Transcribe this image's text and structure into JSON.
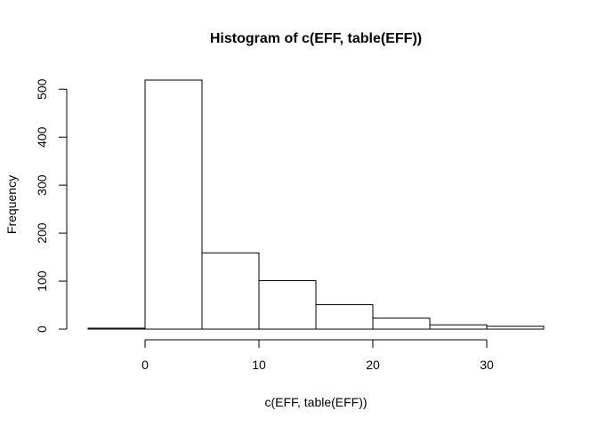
{
  "chart_data": {
    "type": "bar",
    "title": "Histogram of c(EFF, table(EFF))",
    "xlabel": "c(EFF, table(EFF))",
    "ylabel": "Frequency",
    "bins": [
      {
        "start": -5,
        "end": 0,
        "value": 2
      },
      {
        "start": 0,
        "end": 5,
        "value": 519
      },
      {
        "start": 5,
        "end": 10,
        "value": 159
      },
      {
        "start": 10,
        "end": 15,
        "value": 101
      },
      {
        "start": 15,
        "end": 20,
        "value": 51
      },
      {
        "start": 20,
        "end": 25,
        "value": 23
      },
      {
        "start": 25,
        "end": 30,
        "value": 9
      },
      {
        "start": 30,
        "end": 35,
        "value": 6
      }
    ],
    "xlim": [
      -5,
      35
    ],
    "ylim": [
      0,
      519
    ],
    "x_ticks": [
      0,
      10,
      20,
      30
    ],
    "x_tick_labels": [
      "0",
      "10",
      "20",
      "30"
    ],
    "y_ticks": [
      0,
      100,
      200,
      300,
      400,
      500
    ],
    "y_tick_labels": [
      "0",
      "100",
      "200",
      "300",
      "400",
      "500"
    ],
    "grid": false,
    "bar_fill": "#ffffff",
    "bar_stroke": "#000000"
  }
}
